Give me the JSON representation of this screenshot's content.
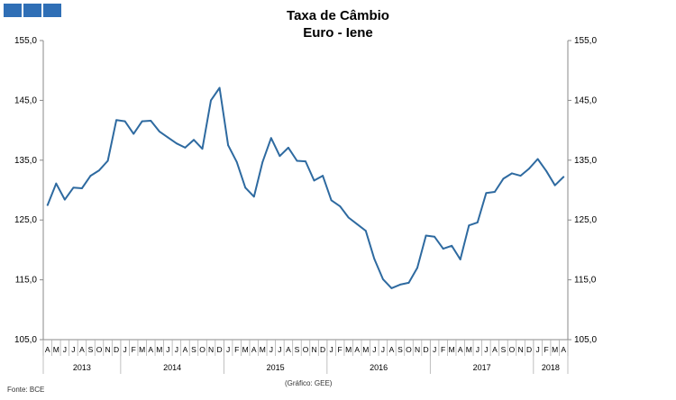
{
  "title_line1": "Taxa de Câmbio",
  "title_line2": "Euro - Iene",
  "source": "Fonte: BCE",
  "credit": "(Gráfico: GEE)",
  "colors": {
    "line": "#2e6aa0",
    "logo": "#2f6fb6"
  },
  "chart_data": {
    "type": "line",
    "title": "Taxa de Câmbio — Euro - Iene",
    "ylim": [
      105,
      155
    ],
    "yticks": [
      "105,0",
      "115,0",
      "125,0",
      "135,0",
      "145,0",
      "155,0"
    ],
    "ytick_values": [
      105,
      115,
      125,
      135,
      145,
      155
    ],
    "grid": false,
    "x": [
      "A",
      "M",
      "J",
      "J",
      "A",
      "S",
      "O",
      "N",
      "D",
      "J",
      "F",
      "M",
      "A",
      "M",
      "J",
      "J",
      "A",
      "S",
      "O",
      "N",
      "D",
      "J",
      "F",
      "M",
      "A",
      "M",
      "J",
      "J",
      "A",
      "S",
      "O",
      "N",
      "D",
      "J",
      "F",
      "M",
      "A",
      "M",
      "J",
      "J",
      "A",
      "S",
      "O",
      "N",
      "D",
      "J",
      "F",
      "M",
      "A",
      "M",
      "J",
      "J",
      "A",
      "S",
      "O",
      "N",
      "D",
      "J",
      "F",
      "M",
      "A"
    ],
    "years": [
      {
        "label": "2013",
        "start": 0,
        "end": 9
      },
      {
        "label": "2014",
        "start": 9,
        "end": 21
      },
      {
        "label": "2015",
        "start": 21,
        "end": 33
      },
      {
        "label": "2016",
        "start": 33,
        "end": 45
      },
      {
        "label": "2017",
        "start": 45,
        "end": 57
      },
      {
        "label": "2018",
        "start": 57,
        "end": 61
      }
    ],
    "series": [
      {
        "values": [
          127.5,
          131.1,
          128.4,
          130.4,
          130.3,
          132.4,
          133.3,
          134.9,
          141.7,
          141.5,
          139.4,
          141.5,
          141.6,
          139.8,
          138.8,
          137.8,
          137.1,
          138.4,
          136.9,
          145.0,
          147.1,
          137.5,
          134.7,
          130.4,
          128.9,
          134.7,
          138.7,
          135.7,
          137.1,
          134.9,
          134.8,
          131.6,
          132.4,
          128.3,
          127.3,
          125.4,
          124.3,
          123.2,
          118.5,
          115.1,
          113.6,
          114.2,
          114.5,
          117.0,
          122.4,
          122.2,
          120.2,
          120.7,
          118.4,
          124.1,
          124.6,
          129.5,
          129.7,
          131.9,
          132.8,
          132.4,
          133.6,
          135.2,
          133.2,
          130.8,
          132.2
        ]
      }
    ]
  }
}
